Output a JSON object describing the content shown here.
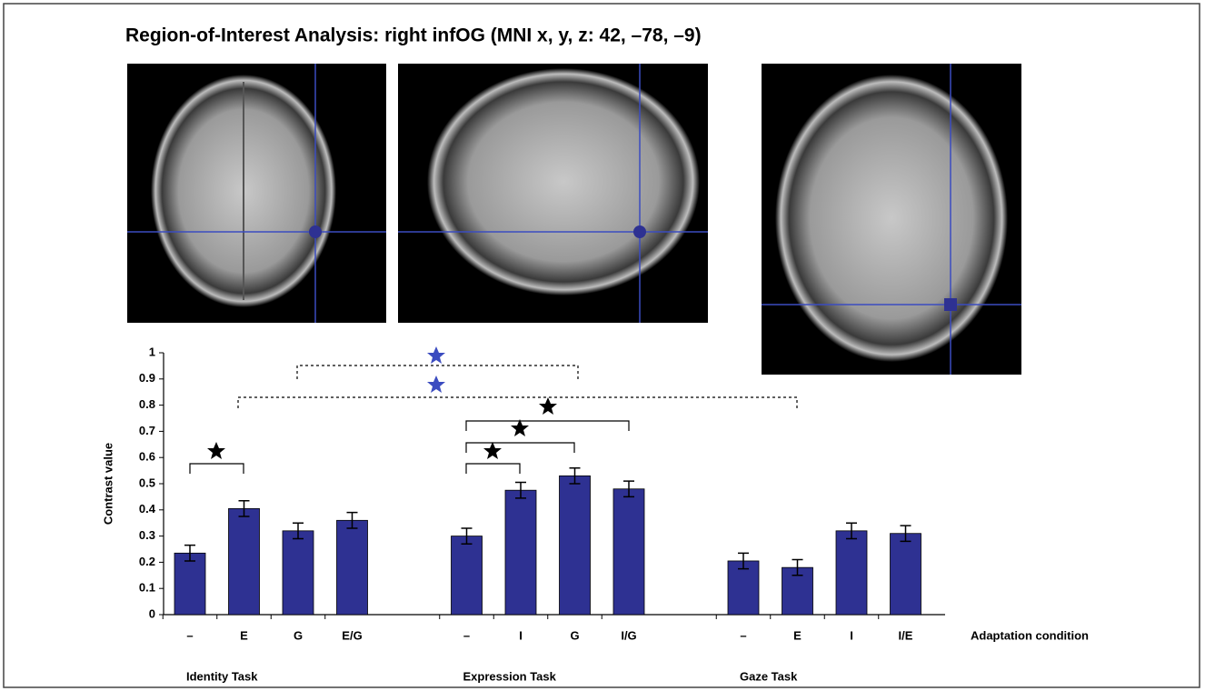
{
  "chart_data": {
    "type": "bar",
    "title": "Region-of-Interest Analysis: right infOG (MNI x, y, z: 42, –78, –9)",
    "categories": [
      "–",
      "E",
      "G",
      "E/G",
      "–",
      "I",
      "G",
      "I/G",
      "–",
      "E",
      "I",
      "I/E"
    ],
    "groups": [
      "Identity Task",
      "Expression Task",
      "Gaze Task"
    ],
    "values": [
      0.235,
      0.405,
      0.32,
      0.36,
      0.3,
      0.475,
      0.53,
      0.48,
      0.205,
      0.18,
      0.32,
      0.31
    ],
    "errors": [
      0.03,
      0.03,
      0.03,
      0.03,
      0.03,
      0.03,
      0.03,
      0.03,
      0.03,
      0.03,
      0.03,
      0.03
    ],
    "color": "#2e3192",
    "ylim": [
      0,
      1
    ],
    "yticks": [
      0,
      0.1,
      0.2,
      0.3,
      0.4,
      0.5,
      0.6,
      0.7,
      0.8,
      0.9,
      1
    ],
    "ylabel": "Contrast value",
    "xlabel": "Adaptation condition"
  }
}
